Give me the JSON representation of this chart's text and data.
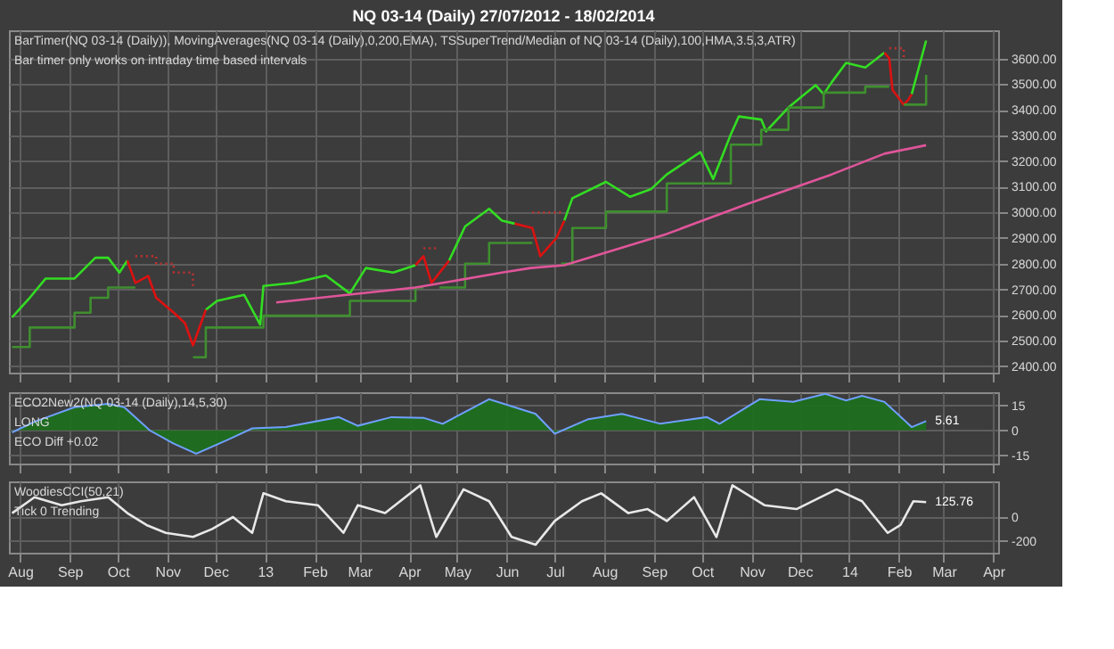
{
  "chart_data": [
    {
      "type": "line",
      "title": "NQ 03-14 (Daily)  27/07/2012 - 18/02/2014",
      "subtitle": "BarTimer(NQ 03-14 (Daily)), MovingAverages(NQ 03-14 (Daily),0,200,EMA), TSSuperTrend/Median of NQ 03-14 (Daily),100,HMA,3.5,3,ATR)",
      "annotations": [
        "Bar timer only works on intraday time based intervals"
      ],
      "xlim": [
        "2012-07-25",
        "2014-04-04"
      ],
      "xticks": [
        {
          "value": "2012-08-01",
          "label": null
        },
        {
          "value": "2012-09-01",
          "label": null
        },
        {
          "value": "2012-10-01",
          "label": null
        },
        {
          "value": "2012-11-01",
          "label": null
        },
        {
          "value": "2012-12-01",
          "label": null
        },
        {
          "value": "2013-01-01",
          "label": null
        },
        {
          "value": "2013-02-01",
          "label": null
        },
        {
          "value": "2013-03-01",
          "label": null
        },
        {
          "value": "2013-04-01",
          "label": null
        },
        {
          "value": "2013-05-01",
          "label": null
        },
        {
          "value": "2013-06-01",
          "label": null
        },
        {
          "value": "2013-07-01",
          "label": null
        },
        {
          "value": "2013-08-01",
          "label": null
        },
        {
          "value": "2013-09-01",
          "label": null
        },
        {
          "value": "2013-10-01",
          "label": null
        },
        {
          "value": "2013-11-01",
          "label": null
        },
        {
          "value": "2013-12-01",
          "label": null
        },
        {
          "value": "2014-01-01",
          "label": null
        },
        {
          "value": "2014-02-01",
          "label": null
        },
        {
          "value": "2014-03-01",
          "label": null
        },
        {
          "value": "2014-04-01",
          "label": null
        }
      ],
      "ylim": [
        2375,
        3710
      ],
      "yticks": [
        {
          "value": 2400,
          "label": "2400.00"
        },
        {
          "value": 2500,
          "label": "2500.00"
        },
        {
          "value": 2600,
          "label": "2600.00"
        },
        {
          "value": 2700,
          "label": "2700.00"
        },
        {
          "value": 2800,
          "label": "2800.00"
        },
        {
          "value": 2900,
          "label": "2900.00"
        },
        {
          "value": 3000,
          "label": "3000.00"
        },
        {
          "value": 3100,
          "label": "3100.00"
        },
        {
          "value": 3200,
          "label": "3200.00"
        },
        {
          "value": 3300,
          "label": "3300.00"
        },
        {
          "value": 3400,
          "label": "3400.00"
        },
        {
          "value": 3500,
          "label": "3500.00"
        },
        {
          "value": 3600,
          "label": "3600.00"
        }
      ],
      "tick_labels": "y",
      "grid": true,
      "series": [
        {
          "color": "#33dd22",
          "x": [
            "2012-07-27",
            "2012-08-07",
            "2012-08-17",
            "2012-09-04",
            "2012-09-17",
            "2012-09-25",
            "2012-10-02",
            "2012-10-07",
            "2012-10-12",
            "2012-10-20",
            "2012-10-25",
            "2012-11-05",
            "2012-11-12",
            "2012-11-17",
            "2012-11-25",
            "2012-12-02",
            "2012-12-19",
            "2012-12-29",
            "2012-12-31",
            "2013-01-19",
            "2013-02-08",
            "2013-02-23",
            "2013-03-05",
            "2013-03-22",
            "2013-04-05",
            "2013-04-10",
            "2013-04-15",
            "2013-04-26",
            "2013-05-06",
            "2013-05-21",
            "2013-05-29",
            "2013-06-06",
            "2013-06-17",
            "2013-06-22",
            "2013-07-02",
            "2013-07-07",
            "2013-07-12",
            "2013-08-02",
            "2013-08-17",
            "2013-08-30",
            "2013-09-09",
            "2013-09-30",
            "2013-10-08",
            "2013-10-19",
            "2013-10-24",
            "2013-11-07",
            "2013-11-10",
            "2013-11-24",
            "2013-12-11",
            "2013-12-16",
            "2013-12-21",
            "2013-12-30",
            "2014-01-11",
            "2014-01-23",
            "2014-01-26",
            "2014-01-28",
            "2014-02-04",
            "2014-02-07",
            "2014-02-09",
            "2014-02-18"
          ],
          "values": [
            2591,
            2667,
            2742,
            2742,
            2823,
            2823,
            2765,
            2812,
            null,
            null,
            null,
            null,
            null,
            null,
            2620,
            2655,
            2678,
            2562,
            2713,
            2725,
            2754,
            2684,
            2783,
            2765,
            2794,
            null,
            null,
            2812,
            2945,
            3014,
            2968,
            2956,
            null,
            null,
            null,
            2968,
            3055,
            3119,
            3061,
            3090,
            3148,
            3235,
            3130,
            3304,
            3374,
            3362,
            3316,
            3409,
            3496,
            3461,
            3507,
            3583,
            3565,
            3623,
            null,
            null,
            null,
            null,
            3461,
            3670
          ]
        },
        {
          "color": "#dd1111",
          "x": [
            "2012-10-07",
            "2012-10-12",
            "2012-10-20",
            "2012-10-25",
            "2012-11-05",
            "2012-11-12",
            "2012-11-17",
            "2012-11-25",
            "2013-01-15",
            "2013-04-05",
            "2013-04-10",
            "2013-04-15",
            "2013-04-26",
            "2013-05-15",
            "2013-06-06",
            "2013-06-17",
            "2013-06-22",
            "2013-07-02",
            "2013-07-07",
            "2013-10-01",
            "2014-01-23",
            "2014-01-26",
            "2014-01-28",
            "2014-02-04",
            "2014-02-07",
            "2014-02-09"
          ],
          "values": [
            2812,
            2725,
            2752,
            2667,
            2609,
            2568,
            2481,
            2620,
            null,
            2794,
            2829,
            2725,
            2812,
            null,
            2956,
            2939,
            2829,
            2900,
            2968,
            null,
            3623,
            3600,
            3478,
            3420,
            3440,
            3461
          ]
        },
        {
          "type": "step",
          "color": "#3f8f2f",
          "x": [
            "2012-07-27",
            "2012-08-07",
            "2012-09-04",
            "2012-09-14",
            "2012-09-25",
            "2012-10-12",
            "2012-10-13",
            "2012-11-17",
            "2012-11-25",
            "2012-12-31",
            "2013-02-23",
            "2013-04-05",
            "2013-04-10",
            "2013-04-11",
            "2013-04-20",
            "2013-05-06",
            "2013-05-21",
            "2013-06-17",
            "2013-06-18",
            "2013-07-05",
            "2013-07-12",
            "2013-08-02",
            "2013-09-09",
            "2013-10-19",
            "2013-11-07",
            "2013-11-24",
            "2013-12-16",
            "2014-01-11",
            "2014-01-26",
            "2014-01-27",
            "2014-02-04",
            "2014-02-18"
          ],
          "values": [
            2475,
            2551,
            2609,
            2667,
            2707,
            2707,
            null,
            2435,
            2551,
            2597,
            2655,
            2707,
            2707,
            null,
            2707,
            2800,
            2881,
            2881,
            null,
            2800,
            2939,
            3003,
            3113,
            3264,
            3322,
            3409,
            3467,
            3490,
            3490,
            null,
            3420,
            3536
          ]
        },
        {
          "type": "step",
          "color": "#c03030",
          "line_style": "dotted",
          "x": [
            "2012-10-12",
            "2012-10-25",
            "2012-11-05",
            "2012-11-17",
            "2012-11-18",
            "2013-04-10",
            "2013-04-20",
            "2013-04-21",
            "2013-06-17",
            "2013-07-05",
            "2013-07-06",
            "2014-01-26",
            "2014-02-04"
          ],
          "values": [
            2829,
            2800,
            2765,
            2700,
            null,
            2860,
            2860,
            null,
            3000,
            3000,
            null,
            3640,
            3600
          ]
        },
        {
          "color": "#e0559a",
          "x": [
            "2013-01-08",
            "2013-04-05",
            "2013-05-29",
            "2013-06-16",
            "2013-07-07",
            "2013-09-09",
            "2013-10-29",
            "2013-12-21",
            "2014-01-23",
            "2014-02-18"
          ],
          "values": [
            2649,
            2707,
            2765,
            2783,
            2794,
            2916,
            3032,
            3148,
            3229,
            3262
          ]
        }
      ]
    },
    {
      "type": "area",
      "title": "ECO2New2(NQ 03-14 (Daily),14,5,30)",
      "annotations": [
        "LONG",
        "ECO Diff +0.02",
        {
          "text": "5.61",
          "x": "2014-02-18",
          "y": 5.61
        }
      ],
      "xlim": [
        "2012-07-25",
        "2014-04-04"
      ],
      "xticks": [
        {
          "value": "2012-08-01",
          "label": null
        },
        {
          "value": "2012-09-01",
          "label": null
        },
        {
          "value": "2012-10-01",
          "label": null
        },
        {
          "value": "2012-11-01",
          "label": null
        },
        {
          "value": "2012-12-01",
          "label": null
        },
        {
          "value": "2013-01-01",
          "label": null
        },
        {
          "value": "2013-02-01",
          "label": null
        },
        {
          "value": "2013-03-01",
          "label": null
        },
        {
          "value": "2013-04-01",
          "label": null
        },
        {
          "value": "2013-05-01",
          "label": null
        },
        {
          "value": "2013-06-01",
          "label": null
        },
        {
          "value": "2013-07-01",
          "label": null
        },
        {
          "value": "2013-08-01",
          "label": null
        },
        {
          "value": "2013-09-01",
          "label": null
        },
        {
          "value": "2013-10-01",
          "label": null
        },
        {
          "value": "2013-11-01",
          "label": null
        },
        {
          "value": "2013-12-01",
          "label": null
        },
        {
          "value": "2014-01-01",
          "label": null
        },
        {
          "value": "2014-02-01",
          "label": null
        },
        {
          "value": "2014-03-01",
          "label": null
        },
        {
          "value": "2014-04-01",
          "label": null
        }
      ],
      "ylim": [
        -20,
        23
      ],
      "yticks": [
        -15,
        0,
        15
      ],
      "tick_labels": "y",
      "grid": true,
      "series": [
        {
          "color": "#1d6e1d",
          "x": [
            "2012-07-27",
            "2012-08-10",
            "2012-09-04",
            "2012-09-25",
            "2012-10-05",
            "2012-10-21",
            "2012-11-05",
            "2012-11-19",
            "2012-12-08",
            "2012-12-24",
            "2013-01-14",
            "2013-02-16",
            "2013-02-28",
            "2013-03-21",
            "2013-04-10",
            "2013-04-22",
            "2013-05-21",
            "2013-06-19",
            "2013-07-01",
            "2013-07-22",
            "2013-08-12",
            "2013-09-05",
            "2013-10-04",
            "2013-10-12",
            "2013-11-06",
            "2013-11-27",
            "2013-12-17",
            "2013-12-30",
            "2014-01-09",
            "2014-01-23",
            "2014-02-09",
            "2014-02-18"
          ],
          "values": [
            -1.2,
            5.2,
            14,
            16,
            14,
            0,
            -8,
            -14,
            -6,
            1.2,
            2,
            8,
            2.8,
            8,
            7.6,
            4,
            18.8,
            10,
            -2,
            6.8,
            10,
            4,
            8,
            4,
            18.8,
            17.2,
            22,
            18,
            20.8,
            17.2,
            2,
            5.61
          ]
        }
      ]
    },
    {
      "type": "line",
      "title": "WoodiesCCI(50,21)",
      "annotations": [
        "Tick 0 Trending",
        {
          "text": "125.76",
          "x": "2014-02-18",
          "y": 125.76
        }
      ],
      "xlim": [
        "2012-07-25",
        "2014-04-04"
      ],
      "xticks": [
        {
          "value": "2012-08-01",
          "label": "Aug"
        },
        {
          "value": "2012-09-01",
          "label": "Sep"
        },
        {
          "value": "2012-10-01",
          "label": "Oct"
        },
        {
          "value": "2012-11-01",
          "label": "Nov"
        },
        {
          "value": "2012-12-01",
          "label": "Dec"
        },
        {
          "value": "2013-01-01",
          "label": "13"
        },
        {
          "value": "2013-02-01",
          "label": "Feb"
        },
        {
          "value": "2013-03-01",
          "label": "Mar"
        },
        {
          "value": "2013-04-01",
          "label": "Apr"
        },
        {
          "value": "2013-05-01",
          "label": "May"
        },
        {
          "value": "2013-06-01",
          "label": "Jun"
        },
        {
          "value": "2013-07-01",
          "label": "Jul"
        },
        {
          "value": "2013-08-01",
          "label": "Aug"
        },
        {
          "value": "2013-09-01",
          "label": "Sep"
        },
        {
          "value": "2013-10-01",
          "label": "Oct"
        },
        {
          "value": "2013-11-01",
          "label": "Nov"
        },
        {
          "value": "2013-12-01",
          "label": "Dec"
        },
        {
          "value": "2014-01-01",
          "label": "14"
        },
        {
          "value": "2014-02-01",
          "label": "Feb"
        },
        {
          "value": "2014-03-01",
          "label": "Mar"
        },
        {
          "value": "2014-04-01",
          "label": "Apr"
        }
      ],
      "ylim": [
        -300,
        300
      ],
      "yticks": [
        -200,
        0
      ],
      "grid": true,
      "series": [
        {
          "color": "#e8e8e8",
          "x": [
            "2012-07-27",
            "2012-08-10",
            "2012-08-27",
            "2012-09-08",
            "2012-09-25",
            "2012-10-07",
            "2012-10-19",
            "2012-10-31",
            "2012-11-17",
            "2012-11-29",
            "2012-12-12",
            "2012-12-24",
            "2012-12-31",
            "2013-01-14",
            "2013-02-03",
            "2013-02-19",
            "2013-02-28",
            "2013-03-17",
            "2013-04-08",
            "2013-04-18",
            "2013-05-05",
            "2013-05-21",
            "2013-06-04",
            "2013-06-19",
            "2013-07-01",
            "2013-07-18",
            "2013-07-30",
            "2013-08-16",
            "2013-08-28",
            "2013-09-09",
            "2013-09-26",
            "2013-10-10",
            "2013-10-20",
            "2013-11-09",
            "2013-11-29",
            "2013-12-24",
            "2014-01-09",
            "2014-01-25",
            "2014-02-02",
            "2014-02-10",
            "2014-02-18"
          ],
          "values": [
            33,
            167,
            100,
            133,
            167,
            33,
            -67,
            -133,
            -167,
            -100,
            0,
            -133,
            200,
            133,
            100,
            -133,
            100,
            33,
            267,
            -167,
            233,
            133,
            -167,
            -233,
            -33,
            133,
            200,
            33,
            67,
            -33,
            167,
            -167,
            267,
            100,
            67,
            233,
            133,
            -133,
            -67,
            133,
            125.76
          ]
        }
      ]
    }
  ]
}
